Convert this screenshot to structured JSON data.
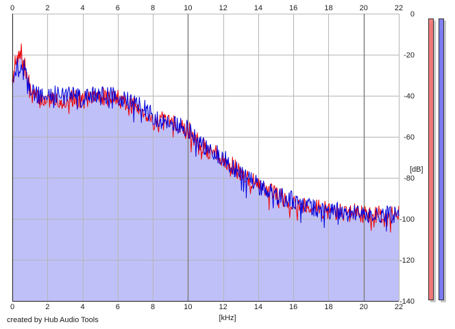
{
  "footer": {
    "credit": "created by Hub Audio Tools"
  },
  "meters": [
    {
      "name": "left-channel-meter",
      "color": "#f08080",
      "fill_color": "#f07878",
      "level_db": -2
    },
    {
      "name": "right-channel-meter",
      "color": "#8080f0",
      "fill_color": "#7a7af0",
      "level_db": -5
    }
  ],
  "chart_data": {
    "type": "line",
    "title": "",
    "xlabel": "[kHz]",
    "ylabel": "[dB]",
    "xlim": [
      0,
      22
    ],
    "ylim": [
      -140,
      0
    ],
    "x_ticks": [
      0,
      2,
      4,
      6,
      8,
      10,
      12,
      14,
      16,
      18,
      20,
      22
    ],
    "x_tick_labels": [
      "0",
      "2",
      "4",
      "6",
      "8",
      "10",
      "12",
      "14",
      "16",
      "18",
      "20",
      "22"
    ],
    "y_ticks": [
      0,
      -20,
      -40,
      -60,
      -80,
      -100,
      -120,
      -140
    ],
    "y_tick_labels": [
      "0",
      "-20",
      "-40",
      "-60",
      "-80",
      "-100",
      "-120",
      "-140"
    ],
    "grid": true,
    "colors": {
      "fill": "#c0c0f8",
      "grid": "#b4b4b4",
      "grid_major": "#808080"
    },
    "series": [
      {
        "color": "#ee0000",
        "x": [
          0,
          0.25,
          0.5,
          0.75,
          1,
          1.5,
          2,
          2.5,
          3,
          3.5,
          4,
          4.5,
          5,
          5.5,
          6,
          6.5,
          7,
          7.5,
          8,
          8.5,
          9,
          9.5,
          10,
          10.5,
          11,
          11.5,
          12,
          12.5,
          13,
          13.5,
          14,
          14.5,
          15,
          15.5,
          16,
          16.5,
          17,
          17.5,
          18,
          18.5,
          19,
          19.5,
          20,
          20.5,
          21,
          21.5,
          22
        ],
        "values": [
          -30,
          -24,
          -20,
          -28,
          -38,
          -42,
          -42,
          -42,
          -42,
          -41,
          -42,
          -41,
          -40,
          -41,
          -41,
          -44,
          -45,
          -48,
          -52,
          -52,
          -54,
          -54,
          -56,
          -62,
          -66,
          -68,
          -70,
          -74,
          -78,
          -80,
          -84,
          -86,
          -88,
          -90,
          -92,
          -93,
          -94,
          -95,
          -96,
          -96,
          -97,
          -97,
          -98,
          -98,
          -98,
          -98,
          -98
        ]
      },
      {
        "color": "#0000dd",
        "x": [
          0,
          0.25,
          0.5,
          0.75,
          1,
          1.5,
          2,
          2.5,
          3,
          3.5,
          4,
          4.5,
          5,
          5.5,
          6,
          6.5,
          7,
          7.5,
          8,
          8.5,
          9,
          9.5,
          10,
          10.5,
          11,
          11.5,
          12,
          12.5,
          13,
          13.5,
          14,
          14.5,
          15,
          15.5,
          16,
          16.5,
          17,
          17.5,
          18,
          18.5,
          19,
          19.5,
          20,
          20.5,
          21,
          21.5,
          22
        ],
        "values": [
          -32,
          -26,
          -24,
          -30,
          -38,
          -40,
          -40,
          -39,
          -40,
          -40,
          -41,
          -40,
          -39,
          -40,
          -40,
          -42,
          -44,
          -46,
          -50,
          -52,
          -53,
          -54,
          -56,
          -62,
          -65,
          -68,
          -70,
          -74,
          -78,
          -80,
          -84,
          -85,
          -88,
          -90,
          -91,
          -93,
          -94,
          -95,
          -96,
          -96,
          -97,
          -97,
          -98,
          -98,
          -98,
          -98,
          -98
        ]
      }
    ]
  }
}
